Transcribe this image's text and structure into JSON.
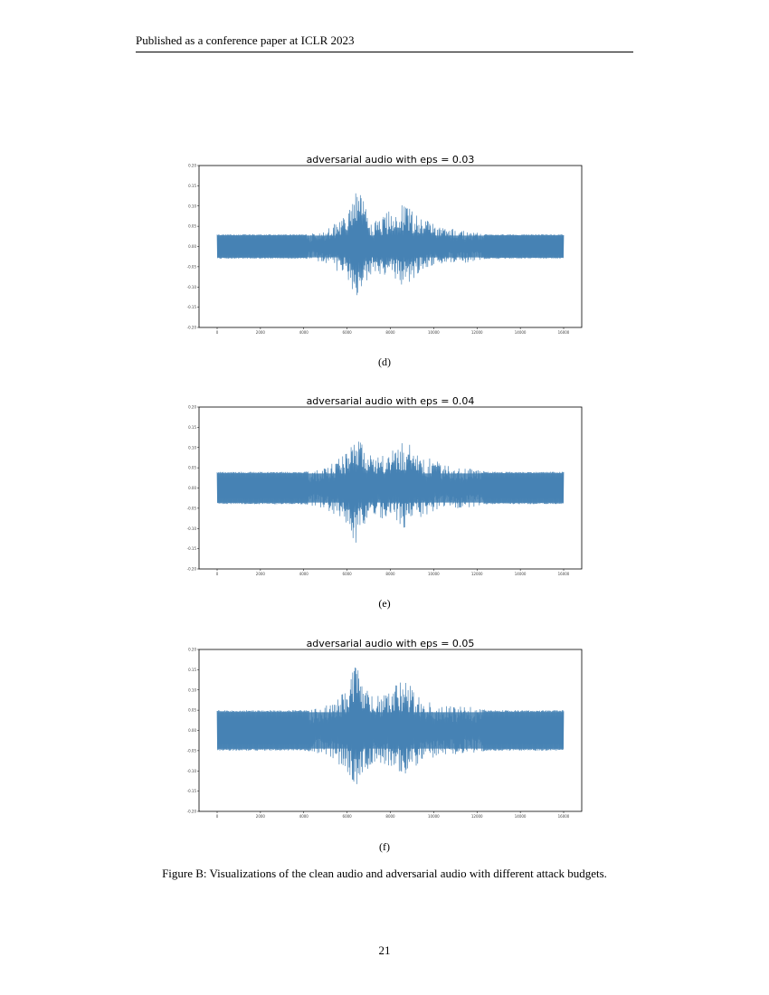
{
  "header": "Published as a conference paper at ICLR 2023",
  "caption": "Figure B: Visualizations of the clean audio and adversarial audio with different attack budgets.",
  "page_number": "21",
  "colors": {
    "waveform": "#4682b4",
    "axes": "#000000"
  },
  "chart_data": [
    {
      "type": "line",
      "title": "adversarial audio with eps = 0.03",
      "sublabel": "(d)",
      "eps": 0.03,
      "xlim": [
        0,
        16000
      ],
      "ylim": [
        -0.2,
        0.2
      ],
      "xticks": [
        "0",
        "2000",
        "4000",
        "6000",
        "8000",
        "10000",
        "12000",
        "14000",
        "16000"
      ],
      "yticks": [
        "0.20",
        "0.15",
        "0.10",
        "0.05",
        "0.00",
        "-0.05",
        "-0.10",
        "-0.15",
        "-0.20"
      ],
      "envelope": {
        "x": [
          0,
          4000,
          5000,
          6000,
          6400,
          6600,
          7200,
          8000,
          8600,
          9500,
          10500,
          11500,
          12500,
          16000
        ],
        "upper": [
          0.03,
          0.03,
          0.04,
          0.08,
          0.14,
          0.13,
          0.06,
          0.09,
          0.11,
          0.07,
          0.05,
          0.04,
          0.03,
          0.03
        ],
        "lower": [
          -0.03,
          -0.03,
          -0.04,
          -0.08,
          -0.13,
          -0.12,
          -0.06,
          -0.08,
          -0.1,
          -0.06,
          -0.04,
          -0.04,
          -0.03,
          -0.03
        ]
      }
    },
    {
      "type": "line",
      "title": "adversarial audio with eps = 0.04",
      "sublabel": "(e)",
      "eps": 0.04,
      "xlim": [
        0,
        16000
      ],
      "ylim": [
        -0.2,
        0.2
      ],
      "xticks": [
        "0",
        "2000",
        "4000",
        "6000",
        "8000",
        "10000",
        "12000",
        "14000",
        "16000"
      ],
      "yticks": [
        "0.20",
        "0.15",
        "0.10",
        "0.05",
        "0.00",
        "-0.05",
        "-0.10",
        "-0.15",
        "-0.20"
      ],
      "envelope": {
        "x": [
          0,
          4000,
          5000,
          6000,
          6400,
          6600,
          7200,
          8000,
          8600,
          9500,
          10500,
          11500,
          12500,
          16000
        ],
        "upper": [
          0.04,
          0.04,
          0.05,
          0.09,
          0.16,
          0.13,
          0.07,
          0.09,
          0.12,
          0.08,
          0.06,
          0.05,
          0.04,
          0.04
        ],
        "lower": [
          -0.04,
          -0.04,
          -0.05,
          -0.09,
          -0.14,
          -0.12,
          -0.07,
          -0.08,
          -0.1,
          -0.07,
          -0.05,
          -0.05,
          -0.04,
          -0.04
        ]
      }
    },
    {
      "type": "line",
      "title": "adversarial audio with eps = 0.05",
      "sublabel": "(f)",
      "eps": 0.05,
      "xlim": [
        0,
        16000
      ],
      "ylim": [
        -0.2,
        0.2
      ],
      "xticks": [
        "0",
        "2000",
        "4000",
        "6000",
        "8000",
        "10000",
        "12000",
        "14000",
        "16000"
      ],
      "yticks": [
        "0.20",
        "0.15",
        "0.10",
        "0.05",
        "0.00",
        "-0.05",
        "-0.10",
        "-0.15",
        "-0.20"
      ],
      "envelope": {
        "x": [
          0,
          4000,
          5000,
          6000,
          6400,
          6600,
          7200,
          8000,
          8600,
          9500,
          10500,
          11500,
          12500,
          16000
        ],
        "upper": [
          0.05,
          0.05,
          0.06,
          0.1,
          0.17,
          0.14,
          0.08,
          0.1,
          0.13,
          0.08,
          0.06,
          0.06,
          0.05,
          0.05
        ],
        "lower": [
          -0.05,
          -0.05,
          -0.06,
          -0.1,
          -0.16,
          -0.13,
          -0.08,
          -0.09,
          -0.11,
          -0.08,
          -0.06,
          -0.06,
          -0.05,
          -0.05
        ]
      }
    }
  ]
}
